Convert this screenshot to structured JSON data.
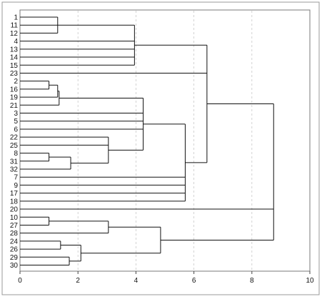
{
  "chart_data": {
    "type": "dendrogram",
    "orientation": "horizontal",
    "title": "",
    "xlabel": "",
    "ylabel": "",
    "xlim": [
      0,
      10
    ],
    "x_ticks": [
      "0",
      "2",
      "4",
      "6",
      "8",
      "10"
    ],
    "grid": true,
    "leaf_order": [
      "1",
      "11",
      "12",
      "4",
      "13",
      "14",
      "15",
      "23",
      "2",
      "16",
      "19",
      "21",
      "3",
      "5",
      "6",
      "22",
      "25",
      "8",
      "31",
      "32",
      "7",
      "9",
      "17",
      "18",
      "20",
      "10",
      "27",
      "28",
      "24",
      "26",
      "29",
      "30"
    ],
    "merges": [
      {
        "id": "c1",
        "height": 1.3,
        "children": [
          "1",
          "11",
          "12"
        ]
      },
      {
        "id": "c2",
        "height": 3.95,
        "children": [
          "c1",
          "4",
          "13",
          "14",
          "15"
        ]
      },
      {
        "id": "c3",
        "height": 1.0,
        "children": [
          "2",
          "16"
        ]
      },
      {
        "id": "c4",
        "height": 1.3,
        "children": [
          "c3",
          "19"
        ]
      },
      {
        "id": "c5",
        "height": 1.35,
        "children": [
          "c4",
          "21"
        ]
      },
      {
        "id": "c6",
        "height": 1.0,
        "children": [
          "8",
          "31"
        ]
      },
      {
        "id": "c7",
        "height": 1.75,
        "children": [
          "c6",
          "32"
        ]
      },
      {
        "id": "c8",
        "height": 3.05,
        "children": [
          "22",
          "25",
          "c7"
        ]
      },
      {
        "id": "c9",
        "height": 4.25,
        "children": [
          "c5",
          "3",
          "5",
          "6",
          "c8"
        ]
      },
      {
        "id": "c10",
        "height": 5.7,
        "children": [
          "c9",
          "7",
          "9",
          "17",
          "18"
        ]
      },
      {
        "id": "c11",
        "height": 6.45,
        "children": [
          "c2",
          "23",
          "c10"
        ]
      },
      {
        "id": "c12",
        "height": 1.0,
        "children": [
          "10",
          "27"
        ]
      },
      {
        "id": "c13",
        "height": 3.05,
        "children": [
          "c12",
          "28"
        ]
      },
      {
        "id": "c14",
        "height": 1.4,
        "children": [
          "24",
          "26"
        ]
      },
      {
        "id": "c15",
        "height": 1.7,
        "children": [
          "29",
          "30"
        ]
      },
      {
        "id": "c16",
        "height": 2.1,
        "children": [
          "c14",
          "c15"
        ]
      },
      {
        "id": "c17",
        "height": 4.85,
        "children": [
          "c13",
          "c16"
        ]
      },
      {
        "id": "c18",
        "height": 8.75,
        "children": [
          "c11",
          "20",
          "c17"
        ]
      }
    ]
  }
}
